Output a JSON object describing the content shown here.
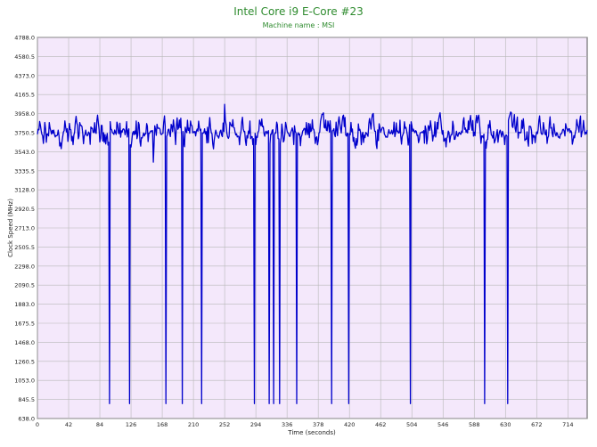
{
  "chart_data": {
    "type": "line",
    "title": "Intel Core i9 E-Core #23",
    "subtitle": "Machine name : MSI",
    "xlabel": "Time (seconds)",
    "ylabel": "Clock Speed (MHz)",
    "xlim": [
      0,
      740
    ],
    "ylim": [
      638.0,
      4788.0
    ],
    "x_ticks": [
      "0",
      "42",
      "84",
      "126",
      "168",
      "210",
      "252",
      "294",
      "336",
      "378",
      "420",
      "462",
      "504",
      "546",
      "588",
      "630",
      "672",
      "714"
    ],
    "y_ticks": [
      "4788.0",
      "4580.5",
      "4373.0",
      "4165.5",
      "3958.0",
      "3750.5",
      "3543.0",
      "3335.5",
      "3128.0",
      "2920.5",
      "2713.0",
      "2505.5",
      "2298.0",
      "2090.5",
      "1883.0",
      "1675.5",
      "1468.0",
      "1260.5",
      "1053.0",
      "845.5",
      "638.0"
    ],
    "grid": true,
    "colors": {
      "line": "#0000cc",
      "plot_bg": "#f4e8fb",
      "grid": "#b8b8b8",
      "title": "#2e8b2e"
    },
    "series": [
      {
        "baseline_mhz": 3750,
        "fluctuation_low_mhz": 3500,
        "fluctuation_high_mhz": 4000,
        "peak": {
          "x": 252,
          "y": 4060
        },
        "dips": [
          {
            "x": 97,
            "y": 800
          },
          {
            "x": 124,
            "y": 800
          },
          {
            "x": 156,
            "y": 3430
          },
          {
            "x": 173,
            "y": 800
          },
          {
            "x": 195,
            "y": 800
          },
          {
            "x": 221,
            "y": 800
          },
          {
            "x": 292,
            "y": 800
          },
          {
            "x": 312,
            "y": 800
          },
          {
            "x": 318,
            "y": 800
          },
          {
            "x": 326,
            "y": 800
          },
          {
            "x": 349,
            "y": 800
          },
          {
            "x": 396,
            "y": 800
          },
          {
            "x": 419,
            "y": 800
          },
          {
            "x": 502,
            "y": 800
          },
          {
            "x": 602,
            "y": 800
          },
          {
            "x": 633,
            "y": 800
          }
        ]
      }
    ]
  }
}
